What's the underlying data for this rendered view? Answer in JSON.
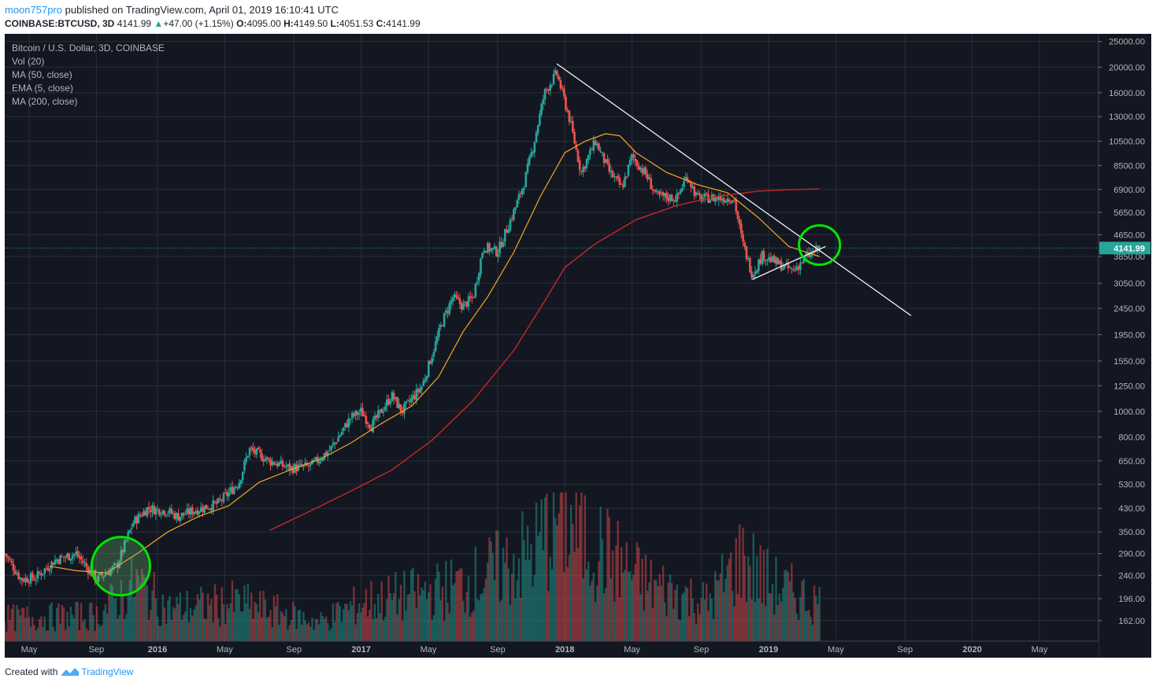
{
  "header": {
    "user": "moon757pro",
    "published": "published on TradingView.com, April 01, 2019 16:10:41 UTC",
    "symbol": "COINBASE:BTCUSD, 3D",
    "last": "4141.99",
    "change_icon": "up-triangle-icon",
    "change": "+47.00 (+1.15%)",
    "o_label": "O:",
    "o": "4095.00",
    "h_label": "H:",
    "h": "4149.50",
    "l_label": "L:",
    "l": "4051.53",
    "c_label": "C:",
    "c": "4141.99"
  },
  "legend": {
    "title": "Bitcoin / U.S. Dollar, 3D, COINBASE",
    "vol": "Vol (20)",
    "ma50": "MA (50, close)",
    "ema5": "EMA (5, close)",
    "ma200": "MA (200, close)"
  },
  "footer": {
    "created": "Created with",
    "brand": "TradingView",
    "logo_icon": "tradingview-logo-icon"
  },
  "colors": {
    "bg": "#131722",
    "grid": "#2a2e39",
    "up": "#26a69a",
    "down": "#ef5350",
    "ma50": "#f5a623",
    "ma200": "#c62828",
    "trend": "#ffffff",
    "circle": "#00e600",
    "price_line": "#26a69a"
  },
  "chart_data": {
    "type": "candlestick",
    "title": "Bitcoin / U.S. Dollar, 3D, COINBASE",
    "y_scale": "log",
    "ylim": [
      150,
      26000
    ],
    "y_ticks": [
      162,
      196,
      240,
      290,
      350,
      430,
      530,
      650,
      800,
      1000,
      1250,
      1550,
      1950,
      2450,
      3050,
      3850,
      4650,
      5650,
      6900,
      8500,
      10500,
      13000,
      16000,
      20000,
      25000
    ],
    "y_tick_labels": [
      "162.00",
      "196.00",
      "240.00",
      "290.00",
      "350.00",
      "430.00",
      "530.00",
      "650.00",
      "800.00",
      "1000.00",
      "1250.00",
      "1550.00",
      "1950.00",
      "2450.00",
      "3050.00",
      "3850.00",
      "4650.00",
      "5650.00",
      "6900.00",
      "8500.00",
      "10500.00",
      "13000.00",
      "16000.00",
      "20000.00",
      "25000.00"
    ],
    "x_range": [
      2015.25,
      2020.62
    ],
    "x_ticks": [
      2015.37,
      2015.7,
      2016.0,
      2016.33,
      2016.67,
      2017.0,
      2017.33,
      2017.67,
      2018.0,
      2018.33,
      2018.67,
      2019.0,
      2019.33,
      2019.67,
      2020.0,
      2020.33
    ],
    "x_tick_labels": [
      "May",
      "Sep",
      "2016",
      "May",
      "Sep",
      "2017",
      "May",
      "Sep",
      "2018",
      "May",
      "Sep",
      "2019",
      "May",
      "Sep",
      "2020",
      "May"
    ],
    "price_path": [
      {
        "t": 2015.25,
        "p": 290
      },
      {
        "t": 2015.33,
        "p": 232
      },
      {
        "t": 2015.4,
        "p": 235
      },
      {
        "t": 2015.5,
        "p": 275
      },
      {
        "t": 2015.6,
        "p": 290
      },
      {
        "t": 2015.7,
        "p": 232
      },
      {
        "t": 2015.8,
        "p": 260
      },
      {
        "t": 2015.88,
        "p": 380
      },
      {
        "t": 2015.95,
        "p": 430
      },
      {
        "t": 2016.05,
        "p": 420
      },
      {
        "t": 2016.1,
        "p": 400
      },
      {
        "t": 2016.17,
        "p": 420
      },
      {
        "t": 2016.3,
        "p": 450
      },
      {
        "t": 2016.4,
        "p": 540
      },
      {
        "t": 2016.45,
        "p": 720
      },
      {
        "t": 2016.55,
        "p": 650
      },
      {
        "t": 2016.65,
        "p": 610
      },
      {
        "t": 2016.75,
        "p": 620
      },
      {
        "t": 2016.85,
        "p": 720
      },
      {
        "t": 2016.95,
        "p": 950
      },
      {
        "t": 2017.0,
        "p": 1000
      },
      {
        "t": 2017.05,
        "p": 880
      },
      {
        "t": 2017.15,
        "p": 1150
      },
      {
        "t": 2017.2,
        "p": 1000
      },
      {
        "t": 2017.3,
        "p": 1250
      },
      {
        "t": 2017.4,
        "p": 2200
      },
      {
        "t": 2017.45,
        "p": 2700
      },
      {
        "t": 2017.5,
        "p": 2500
      },
      {
        "t": 2017.55,
        "p": 2700
      },
      {
        "t": 2017.6,
        "p": 4200
      },
      {
        "t": 2017.67,
        "p": 4000
      },
      {
        "t": 2017.75,
        "p": 5700
      },
      {
        "t": 2017.8,
        "p": 7300
      },
      {
        "t": 2017.85,
        "p": 10500
      },
      {
        "t": 2017.9,
        "p": 16000
      },
      {
        "t": 2017.96,
        "p": 19000
      },
      {
        "t": 2018.02,
        "p": 13000
      },
      {
        "t": 2018.08,
        "p": 8000
      },
      {
        "t": 2018.15,
        "p": 10500
      },
      {
        "t": 2018.22,
        "p": 8000
      },
      {
        "t": 2018.28,
        "p": 7000
      },
      {
        "t": 2018.33,
        "p": 9200
      },
      {
        "t": 2018.4,
        "p": 7800
      },
      {
        "t": 2018.45,
        "p": 6500
      },
      {
        "t": 2018.55,
        "p": 6400
      },
      {
        "t": 2018.6,
        "p": 7800
      },
      {
        "t": 2018.65,
        "p": 6400
      },
      {
        "t": 2018.75,
        "p": 6400
      },
      {
        "t": 2018.83,
        "p": 6400
      },
      {
        "t": 2018.87,
        "p": 4400
      },
      {
        "t": 2018.92,
        "p": 3300
      },
      {
        "t": 2018.97,
        "p": 3900
      },
      {
        "t": 2019.05,
        "p": 3600
      },
      {
        "t": 2019.12,
        "p": 3400
      },
      {
        "t": 2019.18,
        "p": 3800
      },
      {
        "t": 2019.25,
        "p": 4142
      }
    ],
    "ma50_path": [
      {
        "t": 2015.47,
        "p": 260
      },
      {
        "t": 2015.6,
        "p": 250
      },
      {
        "t": 2015.75,
        "p": 245
      },
      {
        "t": 2015.9,
        "p": 290
      },
      {
        "t": 2016.05,
        "p": 350
      },
      {
        "t": 2016.2,
        "p": 400
      },
      {
        "t": 2016.35,
        "p": 440
      },
      {
        "t": 2016.5,
        "p": 540
      },
      {
        "t": 2016.65,
        "p": 600
      },
      {
        "t": 2016.8,
        "p": 660
      },
      {
        "t": 2016.95,
        "p": 760
      },
      {
        "t": 2017.1,
        "p": 900
      },
      {
        "t": 2017.25,
        "p": 1050
      },
      {
        "t": 2017.38,
        "p": 1350
      },
      {
        "t": 2017.5,
        "p": 2000
      },
      {
        "t": 2017.62,
        "p": 2700
      },
      {
        "t": 2017.75,
        "p": 4000
      },
      {
        "t": 2017.88,
        "p": 6500
      },
      {
        "t": 2018.0,
        "p": 9500
      },
      {
        "t": 2018.1,
        "p": 10500
      },
      {
        "t": 2018.2,
        "p": 11200
      },
      {
        "t": 2018.27,
        "p": 11000
      },
      {
        "t": 2018.35,
        "p": 9500
      },
      {
        "t": 2018.5,
        "p": 8000
      },
      {
        "t": 2018.65,
        "p": 7200
      },
      {
        "t": 2018.8,
        "p": 6700
      },
      {
        "t": 2018.95,
        "p": 5400
      },
      {
        "t": 2019.1,
        "p": 4200
      },
      {
        "t": 2019.25,
        "p": 3850
      }
    ],
    "ma200_path": [
      {
        "t": 2016.55,
        "p": 355
      },
      {
        "t": 2016.75,
        "p": 420
      },
      {
        "t": 2016.95,
        "p": 500
      },
      {
        "t": 2017.15,
        "p": 600
      },
      {
        "t": 2017.35,
        "p": 780
      },
      {
        "t": 2017.55,
        "p": 1100
      },
      {
        "t": 2017.75,
        "p": 1700
      },
      {
        "t": 2017.9,
        "p": 2600
      },
      {
        "t": 2018.0,
        "p": 3500
      },
      {
        "t": 2018.15,
        "p": 4300
      },
      {
        "t": 2018.35,
        "p": 5300
      },
      {
        "t": 2018.55,
        "p": 6000
      },
      {
        "t": 2018.75,
        "p": 6500
      },
      {
        "t": 2018.95,
        "p": 6800
      },
      {
        "t": 2019.1,
        "p": 6880
      },
      {
        "t": 2019.25,
        "p": 6930
      }
    ],
    "volume_path": [
      {
        "t": 2015.25,
        "v": 0.18
      },
      {
        "t": 2015.7,
        "v": 0.2
      },
      {
        "t": 2015.9,
        "v": 0.45
      },
      {
        "t": 2016.05,
        "v": 0.25
      },
      {
        "t": 2016.4,
        "v": 0.3
      },
      {
        "t": 2016.8,
        "v": 0.15
      },
      {
        "t": 2017.0,
        "v": 0.3
      },
      {
        "t": 2017.4,
        "v": 0.4
      },
      {
        "t": 2017.6,
        "v": 0.5
      },
      {
        "t": 2017.85,
        "v": 0.7
      },
      {
        "t": 2017.97,
        "v": 1.0
      },
      {
        "t": 2018.1,
        "v": 0.8
      },
      {
        "t": 2018.4,
        "v": 0.45
      },
      {
        "t": 2018.7,
        "v": 0.3
      },
      {
        "t": 2018.87,
        "v": 0.65
      },
      {
        "t": 2019.0,
        "v": 0.45
      },
      {
        "t": 2019.25,
        "v": 0.3
      }
    ],
    "current_price": 4141.99,
    "current_price_label": "4141.99",
    "trendlines": [
      {
        "from": {
          "t": 2017.96,
          "p": 20600
        },
        "to": {
          "t": 2019.7,
          "p": 2300
        }
      },
      {
        "from": {
          "t": 2018.92,
          "p": 3150
        },
        "to": {
          "t": 2019.28,
          "p": 4200
        }
      }
    ],
    "highlight_circles": [
      {
        "t": 2015.82,
        "p": 260,
        "color": "#00e600",
        "fill": "semi"
      },
      {
        "t": 2019.25,
        "p": 4250,
        "color": "#00e600",
        "fill": "none"
      }
    ]
  }
}
